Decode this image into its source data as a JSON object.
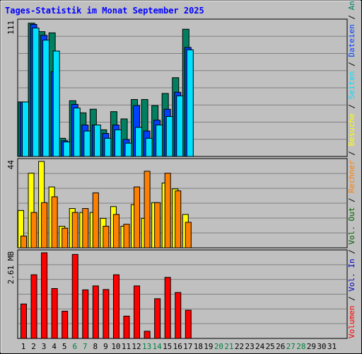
{
  "title": "Tages-Statistik im Monat September 2025",
  "colors": {
    "background": "#c0c0c0",
    "frame": "#000000",
    "grid": "#808080",
    "title": "#0000ff",
    "weekday_label": "#000000",
    "weekend_label": "#008040",
    "anfragen": "#008060",
    "dateien": "#0040ff",
    "seiten": "#00e0ff",
    "besuche": "#ffff00",
    "rechner": "#ff8000",
    "vol_out": "#006000",
    "vol_in": "#0000c0",
    "volumen": "#ff0000"
  },
  "chart_data": [
    {
      "type": "bar",
      "name": "hits-chart",
      "ymax_label": "111",
      "ylim": [
        0,
        111
      ],
      "grid": true,
      "series_order": [
        "anfragen",
        "dateien",
        "seiten"
      ],
      "right_axis_labels": [
        {
          "text": "Anfragen",
          "color_key": "anfragen"
        },
        {
          "text": "Dateien",
          "color_key": "dateien"
        },
        {
          "text": "Seiten",
          "color_key": "seiten"
        }
      ],
      "categories": [
        "1",
        "2",
        "3",
        "4",
        "5",
        "6",
        "7",
        "8",
        "9",
        "10",
        "11",
        "12",
        "13",
        "14",
        "15",
        "16",
        "17"
      ],
      "series": [
        {
          "name": "Anfragen",
          "color_key": "anfragen",
          "values": [
            45,
            110,
            103,
            102,
            15,
            46,
            36,
            39,
            22,
            37,
            31,
            47,
            47,
            42,
            52,
            65,
            105
          ]
        },
        {
          "name": "Dateien",
          "color_key": "dateien",
          "values": [
            45,
            109,
            100,
            70,
            13,
            43,
            26,
            26,
            19,
            26,
            14,
            42,
            21,
            30,
            39,
            53,
            90
          ]
        },
        {
          "name": "Seiten",
          "color_key": "seiten",
          "values": [
            45,
            106,
            96,
            87,
            12,
            40,
            21,
            26,
            15,
            22,
            11,
            24,
            15,
            26,
            33,
            50,
            88
          ]
        }
      ]
    },
    {
      "type": "bar",
      "name": "visits-chart",
      "ymax_label": "44",
      "ylim": [
        0,
        44
      ],
      "grid": true,
      "series_order": [
        "besuche",
        "rechner"
      ],
      "right_axis_labels": [
        {
          "text": "Besuche",
          "color_key": "besuche"
        },
        {
          "text": "Rechner",
          "color_key": "rechner"
        }
      ],
      "categories": [
        "1",
        "2",
        "3",
        "4",
        "5",
        "6",
        "7",
        "8",
        "9",
        "10",
        "11",
        "12",
        "13",
        "14",
        "15",
        "16",
        "17"
      ],
      "series": [
        {
          "name": "Besuche",
          "color_key": "besuche",
          "values": [
            19,
            38,
            44,
            31,
            11,
            20,
            18,
            18,
            15,
            21,
            11,
            22,
            15,
            23,
            33,
            30,
            17
          ]
        },
        {
          "name": "Rechner",
          "color_key": "rechner",
          "values": [
            6,
            18,
            23,
            26,
            10,
            18,
            20,
            28,
            11,
            17,
            12,
            31,
            39,
            23,
            38,
            29,
            13
          ]
        }
      ]
    },
    {
      "type": "bar",
      "name": "volume-chart",
      "ymax_label": "2.61 MB",
      "ylim": [
        0,
        2.61
      ],
      "unit": "MB",
      "grid": true,
      "right_axis_labels": [
        {
          "text": "Vol. Out",
          "color_key": "vol_out"
        },
        {
          "text": "Vol. In",
          "color_key": "vol_in"
        },
        {
          "text": "Volumen",
          "color_key": "volumen"
        }
      ],
      "categories": [
        "1",
        "2",
        "3",
        "4",
        "5",
        "6",
        "7",
        "8",
        "9",
        "10",
        "11",
        "12",
        "13",
        "14",
        "15",
        "16",
        "17"
      ],
      "series": [
        {
          "name": "Volumen",
          "color_key": "volumen",
          "values": [
            1.05,
            1.94,
            2.61,
            1.52,
            0.83,
            2.56,
            1.48,
            1.6,
            1.49,
            1.94,
            0.68,
            1.6,
            0.22,
            1.21,
            1.86,
            1.4,
            0.86
          ]
        }
      ]
    }
  ],
  "x_axis": {
    "days": [
      "1",
      "2",
      "3",
      "4",
      "5",
      "6",
      "7",
      "8",
      "9",
      "10",
      "11",
      "12",
      "13",
      "14",
      "15",
      "16",
      "17",
      "18",
      "19",
      "20",
      "21",
      "22",
      "23",
      "24",
      "25",
      "26",
      "27",
      "28",
      "29",
      "30",
      "31"
    ],
    "weekend_days": [
      "6",
      "7",
      "13",
      "14",
      "20",
      "21",
      "27",
      "28"
    ]
  }
}
